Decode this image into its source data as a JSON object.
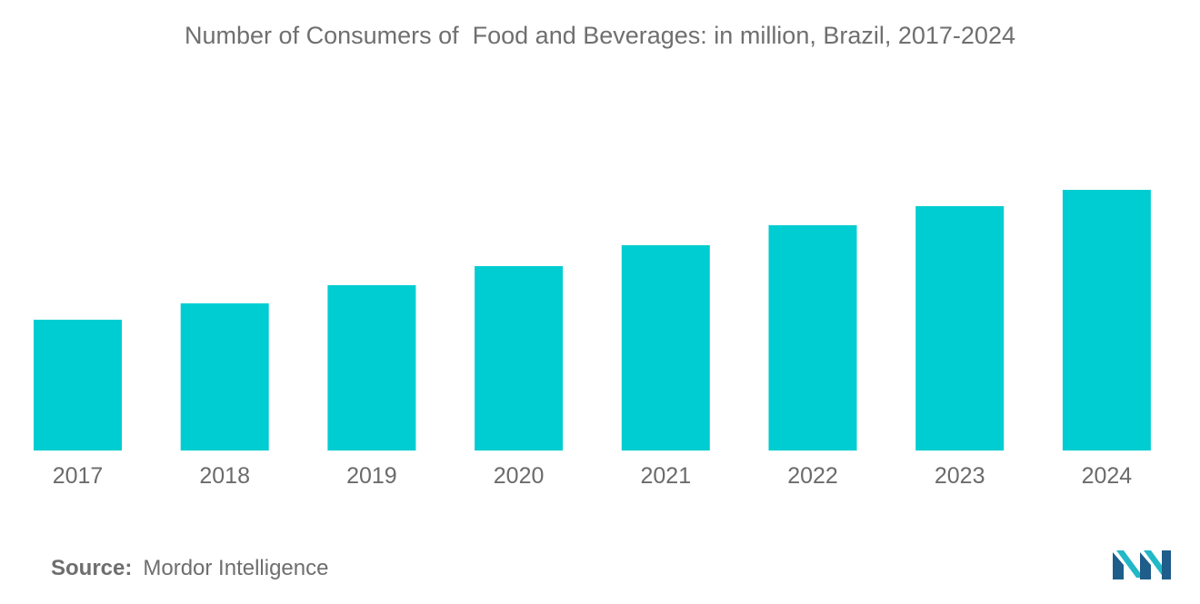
{
  "chart_data": {
    "type": "bar",
    "title": "Number of Consumers of  Food and Beverages: in million, Brazil, 2017-2024",
    "categories": [
      "2017",
      "2018",
      "2019",
      "2020",
      "2021",
      "2022",
      "2023",
      "2024"
    ],
    "series": [
      {
        "values": [
          144,
          162,
          182,
          203,
          226,
          248,
          269,
          287
        ]
      }
    ],
    "xlabel": "",
    "ylabel": "",
    "ylim": [
      0,
      300
    ],
    "grid": false,
    "legend": "none",
    "bar_color": "#00cdd1"
  },
  "source": {
    "label": "Source:",
    "value": "Mordor Intelligence"
  },
  "logo": {
    "icon": "mordor-intelligence-logo-icon",
    "colors": [
      "#1f5d8a",
      "#22b8c8"
    ]
  }
}
